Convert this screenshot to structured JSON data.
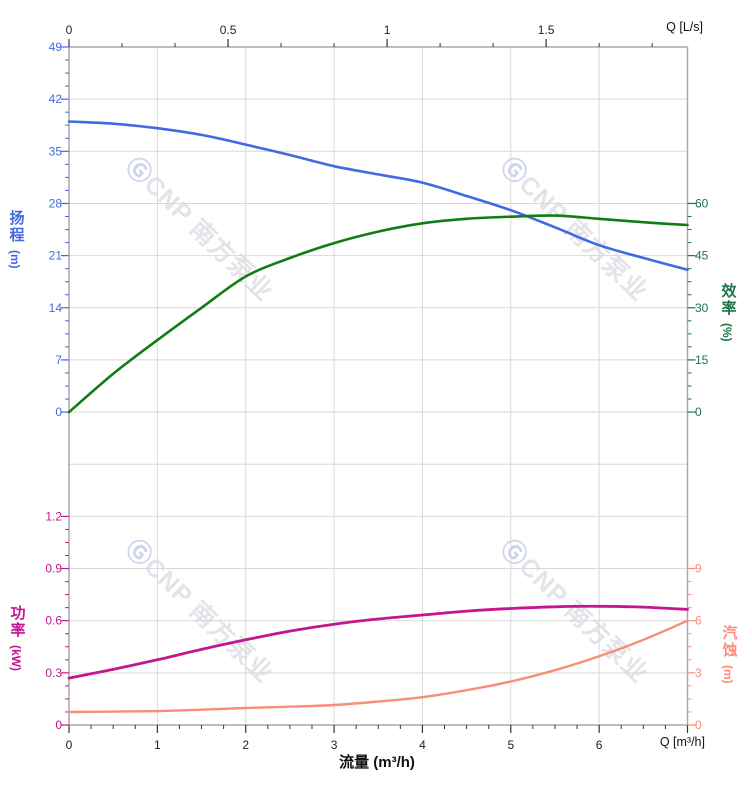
{
  "page": {
    "background": "#ffffff"
  },
  "watermark": {
    "logo_glyph": "Ⓖ",
    "brand_text": "CNP 南方泵业",
    "logo_color": "#ccd5ee",
    "text_color": "#e3e3e9"
  },
  "colors": {
    "head": "#4169e1",
    "efficiency_curve": "#0f7d14",
    "efficiency_text": "#1e7547",
    "power": "#c41690",
    "npsh": "#f98d79",
    "grid": "#d8d8d8",
    "border": "#a9a9a9",
    "black_text": "#222222"
  },
  "axes": {
    "flow_top": {
      "title": "Q [L/s]",
      "tick_labels": [
        "0",
        "0.5",
        "1",
        "1.5"
      ],
      "tick_values_ls": [
        0,
        0.5,
        1,
        1.5
      ]
    },
    "flow_bottom": {
      "title": "流量 (m³/h)",
      "corner_label": "Q [m³/h]",
      "tick_labels": [
        "0",
        "1",
        "2",
        "3",
        "4",
        "5",
        "6"
      ],
      "tick_values": [
        0,
        1,
        2,
        3,
        4,
        5,
        6
      ],
      "max_value": 7
    },
    "head": {
      "title_chars": "扬程",
      "unit": "(m)",
      "tick_labels": [
        "49",
        "42",
        "35",
        "28",
        "21",
        "14",
        "7",
        "0"
      ]
    },
    "efficiency": {
      "title_chars": "效率",
      "unit": "(%)",
      "tick_labels": [
        "60",
        "45",
        "30",
        "15",
        "0"
      ]
    },
    "power": {
      "title_chars": "功率",
      "unit": "(kW)",
      "tick_labels": [
        "1.2",
        "0.9",
        "0.6",
        "0.3",
        "0"
      ]
    },
    "npsh": {
      "title_chars": "汽蚀",
      "unit": "(m)",
      "tick_labels": [
        "9",
        "6",
        "3",
        "0"
      ]
    }
  },
  "chart_data": {
    "type": "line",
    "title": "",
    "xlabel": "流量 (m³/h)",
    "xlabel_secondary": "Q [L/s]",
    "x_range_m3h": [
      0,
      7
    ],
    "x_range_ls": [
      0,
      1.94
    ],
    "grid": true,
    "legend_position": "none",
    "series": [
      {
        "key": "head",
        "name": "扬程",
        "unit": "m",
        "color": "#4169e1",
        "width": 2.6,
        "axis_tick_values": [
          49,
          42,
          35,
          28,
          21,
          14,
          7,
          0
        ],
        "x": [
          0,
          0.5,
          1,
          1.5,
          2,
          2.5,
          3,
          3.5,
          4,
          4.5,
          5,
          5.5,
          6,
          6.5,
          7
        ],
        "y": [
          39.0,
          38.7,
          38.1,
          37.2,
          35.9,
          34.5,
          33.0,
          31.9,
          30.8,
          29.0,
          27.1,
          24.8,
          22.4,
          20.7,
          19.1
        ]
      },
      {
        "key": "efficiency",
        "name": "效率",
        "unit": "%",
        "color": "#0f7d14",
        "width": 2.6,
        "axis_tick_values": [
          60,
          45,
          30,
          15,
          0
        ],
        "x": [
          0,
          0.5,
          1,
          1.5,
          2,
          2.5,
          3,
          3.5,
          4,
          4.5,
          5,
          5.5,
          6,
          6.5,
          7
        ],
        "y": [
          0,
          11,
          20.7,
          30,
          39,
          44.3,
          48.6,
          51.9,
          54.3,
          55.6,
          56.2,
          56.5,
          55.6,
          54.6,
          53.8
        ]
      },
      {
        "key": "power",
        "name": "功率",
        "unit": "kW",
        "color": "#c41690",
        "width": 2.8,
        "axis_tick_values": [
          1.2,
          0.9,
          0.6,
          0.3,
          0
        ],
        "x": [
          0,
          0.5,
          1,
          1.5,
          2,
          2.5,
          3,
          3.5,
          4,
          4.5,
          5,
          5.5,
          6,
          6.5,
          7
        ],
        "y": [
          0.27,
          0.32,
          0.375,
          0.435,
          0.49,
          0.54,
          0.58,
          0.61,
          0.633,
          0.655,
          0.67,
          0.68,
          0.683,
          0.678,
          0.665
        ]
      },
      {
        "key": "npsh",
        "name": "汽蚀",
        "unit": "m",
        "color": "#f98d79",
        "width": 2.4,
        "axis_tick_values": [
          9,
          6,
          3,
          0
        ],
        "x": [
          0,
          0.5,
          1,
          1.5,
          2,
          2.5,
          3,
          3.5,
          4,
          4.5,
          5,
          5.5,
          6,
          6.5,
          7
        ],
        "y": [
          0.75,
          0.77,
          0.8,
          0.88,
          0.98,
          1.05,
          1.15,
          1.35,
          1.6,
          2.0,
          2.5,
          3.15,
          3.95,
          4.9,
          6.0
        ]
      }
    ]
  }
}
